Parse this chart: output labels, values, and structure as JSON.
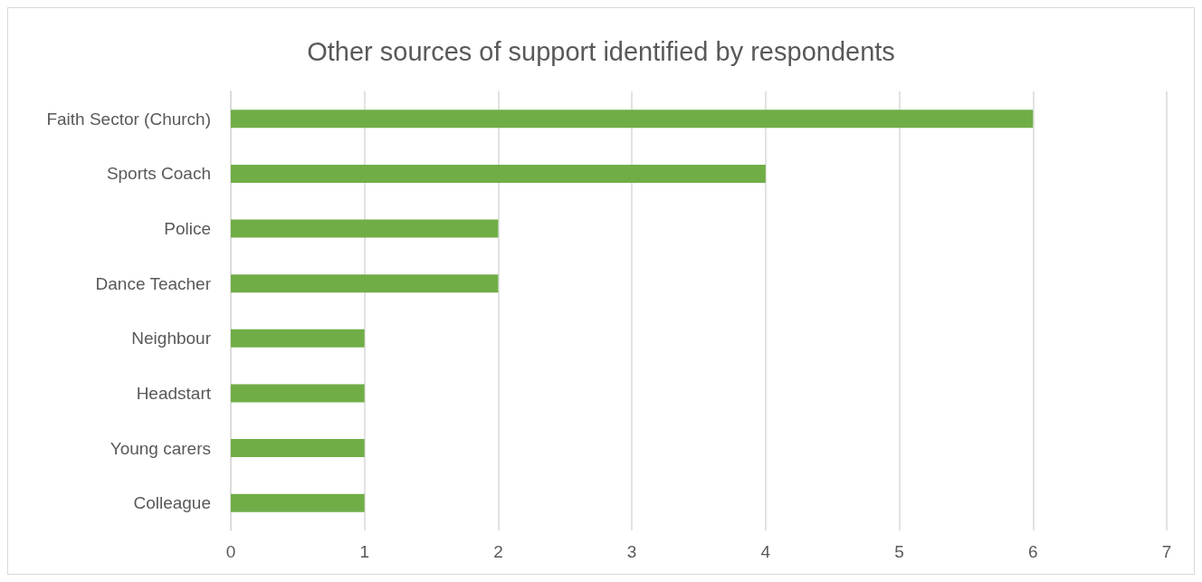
{
  "chart_data": {
    "type": "bar",
    "orientation": "horizontal",
    "title": "Other sources of support identified by respondents",
    "categories": [
      "Faith Sector (Church)",
      "Sports Coach",
      "Police",
      "Dance Teacher",
      "Neighbour",
      "Headstart",
      "Young carers",
      "Colleague"
    ],
    "values": [
      6,
      4,
      2,
      2,
      1,
      1,
      1,
      1
    ],
    "color": "#70ad47",
    "xlim": [
      0,
      7
    ],
    "xticks": [
      0,
      1,
      2,
      3,
      4,
      5,
      6,
      7
    ],
    "grid": "x"
  }
}
